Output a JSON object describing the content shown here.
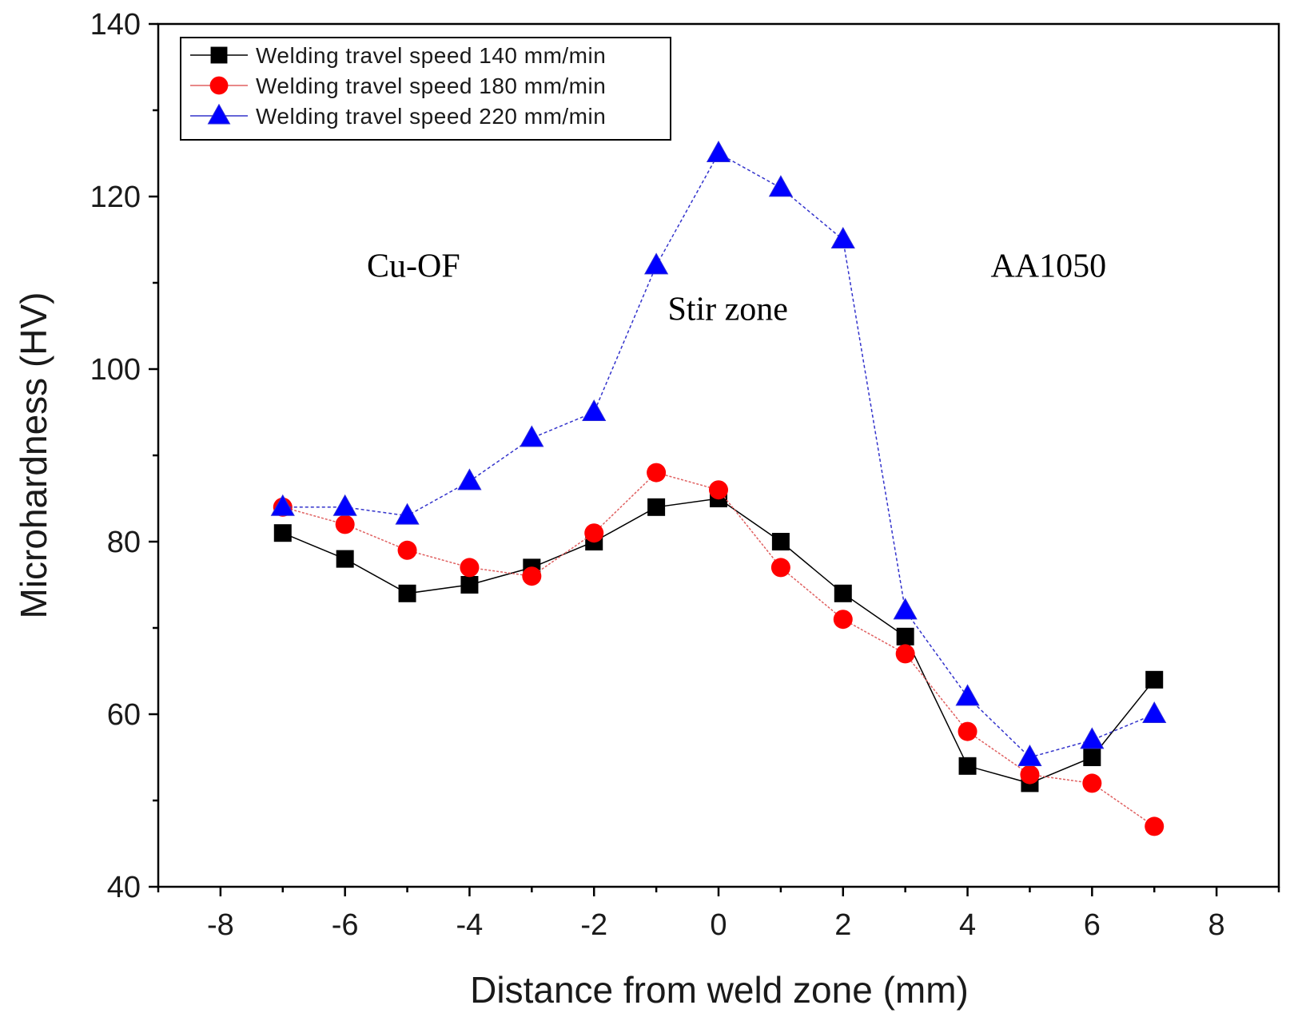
{
  "chart_data": {
    "type": "line",
    "xlabel": "Distance from weld zone (mm)",
    "ylabel": "Microhardness (HV)",
    "xlim": [
      -9,
      9
    ],
    "ylim": [
      40,
      140
    ],
    "xticks": [
      -8,
      -6,
      -4,
      -2,
      0,
      2,
      4,
      6,
      8
    ],
    "yticks": [
      40,
      60,
      80,
      100,
      120,
      140
    ],
    "ytick_labels_shown": [
      40,
      60,
      80,
      100,
      120,
      140
    ],
    "grid": false,
    "legend_position": "top-left",
    "x": [
      -7,
      -6,
      -5,
      -4,
      -3,
      -2,
      -1,
      0,
      1,
      2,
      3,
      4,
      5,
      6,
      7
    ],
    "series": [
      {
        "name": "Welding travel speed 140 mm/min",
        "marker": "square",
        "color": "#000000",
        "values": [
          81,
          78,
          74,
          75,
          77,
          80,
          84,
          85,
          80,
          74,
          69,
          54,
          52,
          55,
          64
        ]
      },
      {
        "name": "Welding travel speed 180 mm/min",
        "marker": "circle",
        "color": "#ff0000",
        "values": [
          84,
          82,
          79,
          77,
          76,
          81,
          88,
          86,
          77,
          71,
          67,
          58,
          53,
          52,
          47
        ]
      },
      {
        "name": "Welding travel speed 220 mm/min",
        "marker": "triangle",
        "color": "#0000ff",
        "values": [
          84,
          84,
          83,
          87,
          92,
          95,
          112,
          125,
          121,
          115,
          72,
          62,
          55,
          57,
          60
        ]
      }
    ],
    "annotations": [
      {
        "text": "Cu-OF",
        "x": -4.9,
        "y": 112
      },
      {
        "text": "Stir zone",
        "x": 0.15,
        "y": 107
      },
      {
        "text": "AA1050",
        "x": 5.3,
        "y": 112
      }
    ]
  }
}
